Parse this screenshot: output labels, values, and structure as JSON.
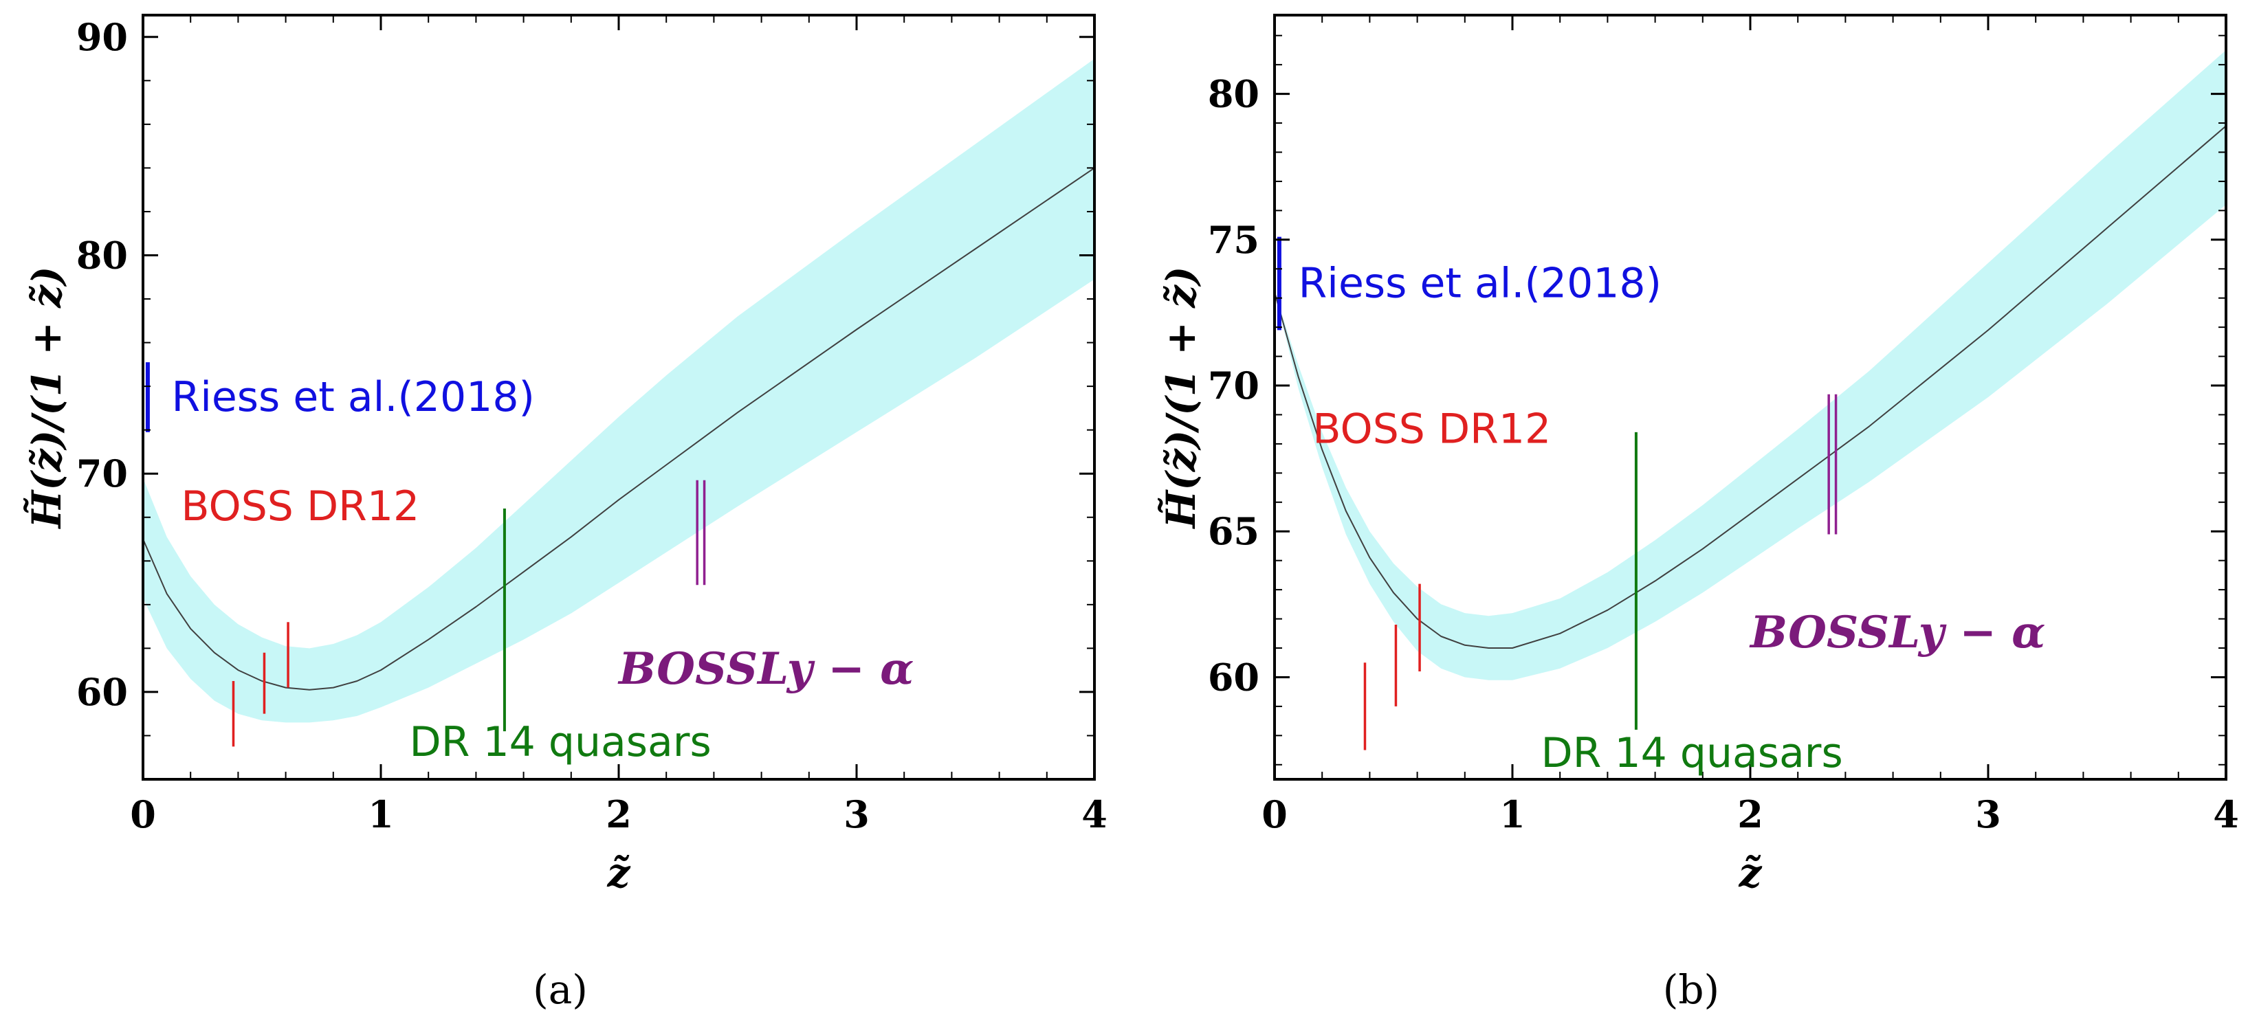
{
  "chart_data": [
    {
      "panel_label": "(a)",
      "type": "line",
      "xlabel": "z̃",
      "ylabel": "H̃(z̃)/(1 + z̃)",
      "xlim": [
        0,
        4
      ],
      "ylim": [
        56,
        91
      ],
      "xticks": [
        "0",
        "1",
        "2",
        "3",
        "4"
      ],
      "yticks": [
        "60",
        "70",
        "80",
        "90"
      ],
      "xtick_values": [
        0,
        1,
        2,
        3,
        4
      ],
      "ytick_values": [
        60,
        70,
        80,
        90
      ],
      "series": [
        {
          "name": "best-fit",
          "color": "#404040",
          "band_color": "#c8f7f7",
          "x": [
            0.0,
            0.1,
            0.2,
            0.3,
            0.4,
            0.5,
            0.6,
            0.7,
            0.8,
            0.9,
            1.0,
            1.2,
            1.4,
            1.6,
            1.8,
            2.0,
            2.2,
            2.5,
            3.0,
            3.5,
            4.0
          ],
          "y": [
            67.0,
            64.5,
            62.9,
            61.8,
            61.0,
            60.5,
            60.2,
            60.1,
            60.2,
            60.5,
            61.0,
            62.4,
            63.9,
            65.5,
            67.1,
            68.8,
            70.4,
            72.8,
            76.6,
            80.3,
            84.0
          ],
          "lower": [
            64.3,
            62.0,
            60.6,
            59.6,
            59.0,
            58.7,
            58.6,
            58.6,
            58.7,
            58.9,
            59.3,
            60.2,
            61.3,
            62.4,
            63.6,
            65.0,
            66.4,
            68.5,
            71.9,
            75.3,
            78.9
          ],
          "upper": [
            69.8,
            67.1,
            65.3,
            64.0,
            63.1,
            62.5,
            62.1,
            62.0,
            62.2,
            62.6,
            63.2,
            64.8,
            66.6,
            68.6,
            70.6,
            72.6,
            74.5,
            77.2,
            81.2,
            85.1,
            89.0
          ]
        }
      ],
      "errorbars": [
        {
          "group": "riess",
          "x": 0.02,
          "y": 73.5,
          "yerr": 1.6,
          "color": "#1010e0"
        },
        {
          "group": "boss",
          "x": 0.38,
          "y": 59.0,
          "yerr": 1.5,
          "color": "#e02020"
        },
        {
          "group": "boss",
          "x": 0.51,
          "y": 60.4,
          "yerr": 1.4,
          "color": "#e02020"
        },
        {
          "group": "boss",
          "x": 0.61,
          "y": 61.7,
          "yerr": 1.5,
          "color": "#e02020"
        },
        {
          "group": "dr14",
          "x": 1.52,
          "y": 63.3,
          "yerr": 5.1,
          "color": "#107a10"
        },
        {
          "group": "lya",
          "x": 2.33,
          "y": 67.3,
          "yerr": 2.4,
          "color": "#902090"
        },
        {
          "group": "lya",
          "x": 2.36,
          "y": 67.3,
          "yerr": 2.4,
          "color": "#902090"
        }
      ],
      "annotations": [
        {
          "text": "Riess et al.(2018)",
          "color": "#1010e0",
          "style": "sans",
          "x": 0.12,
          "y": 73.5
        },
        {
          "text": "BOSS DR12",
          "color": "#e02020",
          "style": "sans",
          "x": 0.16,
          "y": 68.5
        },
        {
          "text": "DR 14 quasars",
          "color": "#107a10",
          "style": "sans",
          "x": 1.12,
          "y": 57.7
        },
        {
          "text": "BOSSLy − α",
          "color": "#7b1a7b",
          "style": "bold",
          "x": 2.0,
          "y": 61.0
        }
      ]
    },
    {
      "panel_label": "(b)",
      "type": "line",
      "xlabel": "z̃",
      "ylabel": "H̃(z̃)/(1 + z̃)",
      "xlim": [
        0,
        4
      ],
      "ylim": [
        56.5,
        82.7
      ],
      "xticks": [
        "0",
        "1",
        "2",
        "3",
        "4"
      ],
      "yticks": [
        "60",
        "65",
        "70",
        "75",
        "80"
      ],
      "xtick_values": [
        0,
        1,
        2,
        3,
        4
      ],
      "ytick_values": [
        60,
        65,
        70,
        75,
        80
      ],
      "series": [
        {
          "name": "best-fit",
          "color": "#404040",
          "band_color": "#c8f7f7",
          "x": [
            0.0,
            0.1,
            0.2,
            0.3,
            0.4,
            0.5,
            0.6,
            0.7,
            0.8,
            0.9,
            1.0,
            1.2,
            1.4,
            1.6,
            1.8,
            2.0,
            2.2,
            2.5,
            3.0,
            3.5,
            4.0
          ],
          "y": [
            73.2,
            70.3,
            67.8,
            65.7,
            64.1,
            62.9,
            62.0,
            61.4,
            61.1,
            61.0,
            61.0,
            61.5,
            62.3,
            63.3,
            64.4,
            65.6,
            66.8,
            68.6,
            71.9,
            75.4,
            78.9
          ],
          "lower": [
            73.2,
            69.9,
            67.2,
            64.9,
            63.2,
            61.9,
            60.9,
            60.3,
            60.0,
            59.9,
            59.9,
            60.3,
            61.0,
            61.9,
            62.9,
            64.0,
            65.1,
            66.7,
            69.6,
            72.8,
            76.2
          ],
          "upper": [
            73.2,
            70.7,
            68.4,
            66.5,
            65.0,
            63.9,
            63.1,
            62.5,
            62.2,
            62.1,
            62.2,
            62.7,
            63.6,
            64.7,
            65.9,
            67.2,
            68.5,
            70.5,
            74.2,
            77.9,
            81.5
          ]
        }
      ],
      "errorbars": [
        {
          "group": "riess",
          "x": 0.02,
          "y": 73.5,
          "yerr": 1.6,
          "color": "#1010e0"
        },
        {
          "group": "boss",
          "x": 0.38,
          "y": 59.0,
          "yerr": 1.5,
          "color": "#e02020"
        },
        {
          "group": "boss",
          "x": 0.51,
          "y": 60.4,
          "yerr": 1.4,
          "color": "#e02020"
        },
        {
          "group": "boss",
          "x": 0.61,
          "y": 61.7,
          "yerr": 1.5,
          "color": "#e02020"
        },
        {
          "group": "dr14",
          "x": 1.52,
          "y": 63.3,
          "yerr": 5.1,
          "color": "#107a10"
        },
        {
          "group": "lya",
          "x": 2.33,
          "y": 67.3,
          "yerr": 2.4,
          "color": "#902090"
        },
        {
          "group": "lya",
          "x": 2.36,
          "y": 67.3,
          "yerr": 2.4,
          "color": "#902090"
        }
      ],
      "annotations": [
        {
          "text": "Riess et al.(2018)",
          "color": "#1010e0",
          "style": "sans",
          "x": 0.1,
          "y": 73.5
        },
        {
          "text": "BOSS DR12",
          "color": "#e02020",
          "style": "sans",
          "x": 0.16,
          "y": 68.5
        },
        {
          "text": "DR 14 quasars",
          "color": "#107a10",
          "style": "sans",
          "x": 1.12,
          "y": 57.4
        },
        {
          "text": "BOSSLy − α",
          "color": "#7b1a7b",
          "style": "bold",
          "x": 2.0,
          "y": 61.5
        }
      ]
    }
  ]
}
